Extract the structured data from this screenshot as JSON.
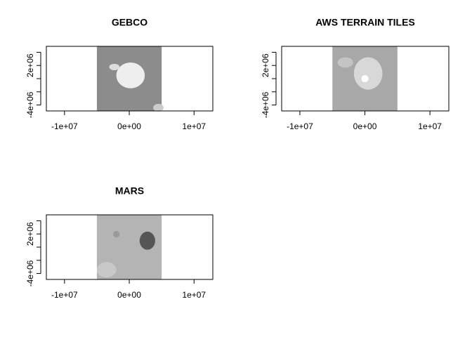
{
  "chart_data": [
    {
      "type": "raster",
      "title": "GEBCO",
      "fill": "#8c8c8c",
      "xlim": [
        -12800000,
        12900000
      ],
      "ylim": [
        -4900000,
        4900000
      ],
      "extent": [
        -5000000,
        5000000
      ],
      "xticks": [
        {
          "value": -10000000,
          "label": "-1e+07"
        },
        {
          "value": 0,
          "label": "0e+00"
        },
        {
          "value": 10000000,
          "label": "1e+07"
        }
      ],
      "yticks": [
        {
          "value": -4000000,
          "label": "-4e+06"
        },
        {
          "value": -2000000,
          "label": null
        },
        {
          "value": 0,
          "label": null
        },
        {
          "value": 2000000,
          "label": "2e+06"
        },
        {
          "value": 4000000,
          "label": null
        }
      ]
    },
    {
      "type": "raster",
      "title": "AWS TERRAIN TILES",
      "fill": "#a8a8a8",
      "xlim": [
        -12800000,
        12900000
      ],
      "ylim": [
        -4900000,
        4900000
      ],
      "extent": [
        -5000000,
        5000000
      ],
      "xticks": [
        {
          "value": -10000000,
          "label": "-1e+07"
        },
        {
          "value": 0,
          "label": "0e+00"
        },
        {
          "value": 10000000,
          "label": "1e+07"
        }
      ],
      "yticks": [
        {
          "value": -4000000,
          "label": "-4e+06"
        },
        {
          "value": -2000000,
          "label": null
        },
        {
          "value": 0,
          "label": null
        },
        {
          "value": 2000000,
          "label": "2e+06"
        },
        {
          "value": 4000000,
          "label": null
        }
      ]
    },
    {
      "type": "raster",
      "title": "MARS",
      "fill": "#b4b4b4",
      "xlim": [
        -12800000,
        12900000
      ],
      "ylim": [
        -4900000,
        4900000
      ],
      "extent": [
        -5000000,
        5000000
      ],
      "xticks": [
        {
          "value": -10000000,
          "label": "-1e+07"
        },
        {
          "value": 0,
          "label": "0e+00"
        },
        {
          "value": 10000000,
          "label": "1e+07"
        }
      ],
      "yticks": [
        {
          "value": -4000000,
          "label": "-4e+06"
        },
        {
          "value": -2000000,
          "label": null
        },
        {
          "value": 0,
          "label": null
        },
        {
          "value": 2000000,
          "label": "2e+06"
        },
        {
          "value": 4000000,
          "label": null
        }
      ]
    }
  ]
}
